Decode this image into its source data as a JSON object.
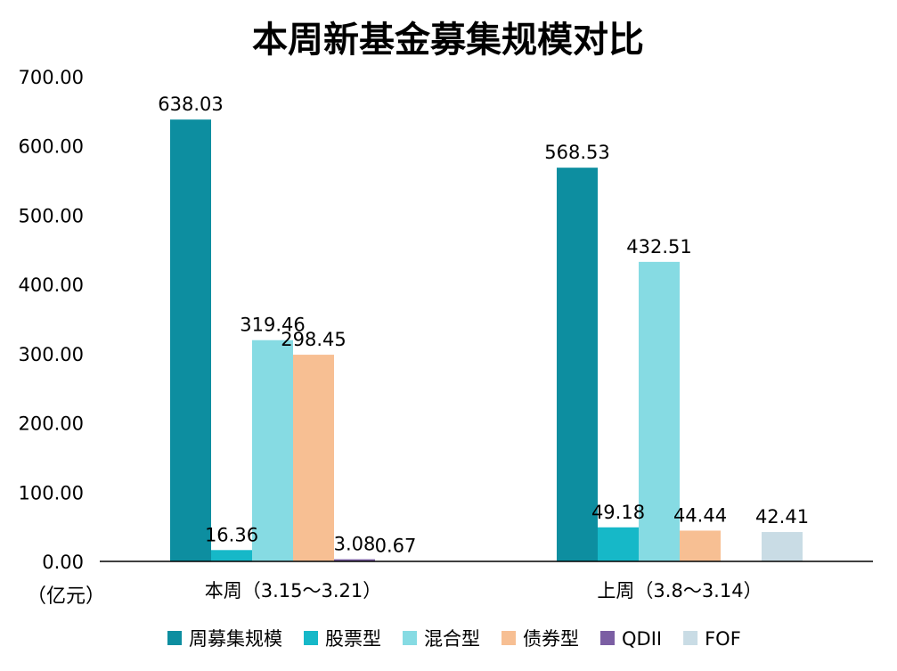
{
  "chart_data": {
    "type": "bar",
    "title": "本周新基金募集规模对比",
    "unit_label": "（亿元）",
    "categories": [
      "本周（3.15～3.21）",
      "上周（3.8～3.14）"
    ],
    "ylim": [
      0,
      700
    ],
    "yticks": [
      0,
      100,
      200,
      300,
      400,
      500,
      600,
      700
    ],
    "ytick_labels": [
      "0.00",
      "100.00",
      "200.00",
      "300.00",
      "400.00",
      "500.00",
      "600.00",
      "700.00"
    ],
    "grid": false,
    "legend_position": "bottom",
    "series": [
      {
        "name": "周募集规模",
        "color": "#0d8ea0",
        "values": [
          638.03,
          568.53
        ],
        "labels": [
          "638.03",
          "568.53"
        ]
      },
      {
        "name": "股票型",
        "color": "#16b8c8",
        "values": [
          16.36,
          49.18
        ],
        "labels": [
          "16.36",
          "49.18"
        ]
      },
      {
        "name": "混合型",
        "color": "#86dbe3",
        "values": [
          319.46,
          432.51
        ],
        "labels": [
          "319.46",
          "432.51"
        ]
      },
      {
        "name": "债券型",
        "color": "#f7bf93",
        "values": [
          298.45,
          44.44
        ],
        "labels": [
          "298.45",
          "44.44"
        ]
      },
      {
        "name": "QDII",
        "color": "#7b5ea3",
        "values": [
          3.08,
          null
        ],
        "labels": [
          "3.08",
          ""
        ]
      },
      {
        "name": "FOF",
        "color": "#c9dce5",
        "values": [
          0.67,
          42.41
        ],
        "labels": [
          "0.67",
          "42.41"
        ]
      }
    ]
  }
}
